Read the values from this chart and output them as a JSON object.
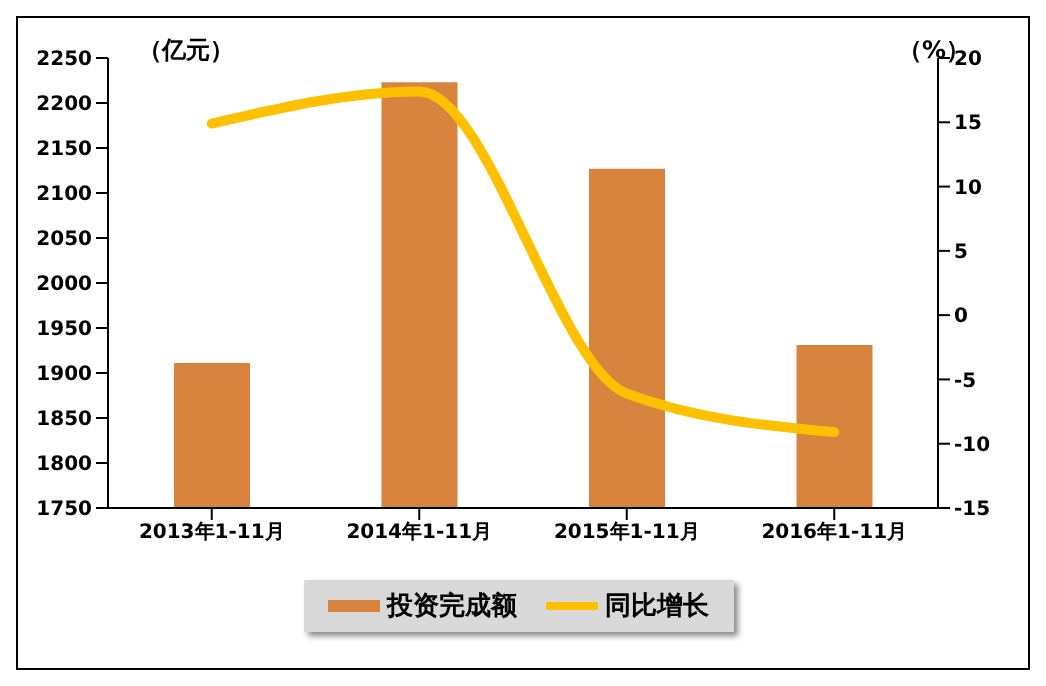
{
  "chart_data": {
    "type": "bar",
    "ylabel": "（亿元）",
    "y2label": "（%）",
    "categories": [
      "2013年1-11月",
      "2014年1-11月",
      "2015年1-11月",
      "2016年1-11月"
    ],
    "series": [
      {
        "name": "投资完成额",
        "color": "#d9843e",
        "values": [
          1911,
          2223,
          2127,
          1931
        ]
      },
      {
        "name": "同比增长",
        "type": "line",
        "axis": "y2",
        "color": "#ffc000",
        "values": [
          14.9,
          17.4,
          -6.1,
          -9.1
        ]
      }
    ],
    "ylim": [
      1750,
      2250
    ],
    "yticks": [
      1750,
      1800,
      1850,
      1900,
      1950,
      2000,
      2050,
      2100,
      2150,
      2200,
      2250
    ],
    "y2lim": [
      -15,
      20
    ],
    "y2ticks": [
      -15,
      -10,
      -5,
      0,
      5,
      10,
      15,
      20
    ],
    "marker": "none",
    "legend": "bottom"
  }
}
